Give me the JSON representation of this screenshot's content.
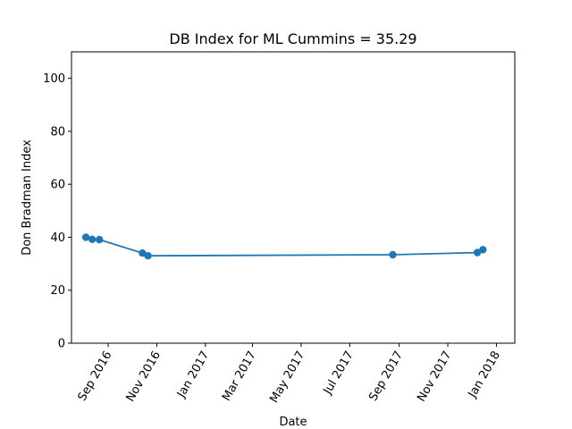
{
  "chart_data": {
    "type": "line",
    "title": "DB Index for ML Cummins = 35.29",
    "xlabel": "Date",
    "ylabel": "Don Bradman Index",
    "x_is_date": true,
    "xlim": [
      "2016-07-17",
      "2018-01-24"
    ],
    "ylim": [
      0,
      110
    ],
    "x_ticks": [
      {
        "date": "2016-09-01",
        "label": "Sep 2016"
      },
      {
        "date": "2016-11-01",
        "label": "Nov 2016"
      },
      {
        "date": "2017-01-01",
        "label": "Jan 2017"
      },
      {
        "date": "2017-03-01",
        "label": "Mar 2017"
      },
      {
        "date": "2017-05-01",
        "label": "May 2017"
      },
      {
        "date": "2017-07-01",
        "label": "Jul 2017"
      },
      {
        "date": "2017-09-01",
        "label": "Sep 2017"
      },
      {
        "date": "2017-11-01",
        "label": "Nov 2017"
      },
      {
        "date": "2018-01-01",
        "label": "Jan 2018"
      }
    ],
    "y_ticks": [
      0,
      20,
      40,
      60,
      80,
      100
    ],
    "grid": false,
    "color": "#1f77b4",
    "series": [
      {
        "x": [
          "2016-08-04",
          "2016-08-12",
          "2016-08-21",
          "2016-10-14",
          "2016-10-21",
          "2017-08-24",
          "2017-12-08",
          "2017-12-15"
        ],
        "values": [
          40.0,
          39.2,
          39.1,
          34.0,
          33.0,
          33.4,
          34.2,
          35.29
        ]
      }
    ]
  }
}
